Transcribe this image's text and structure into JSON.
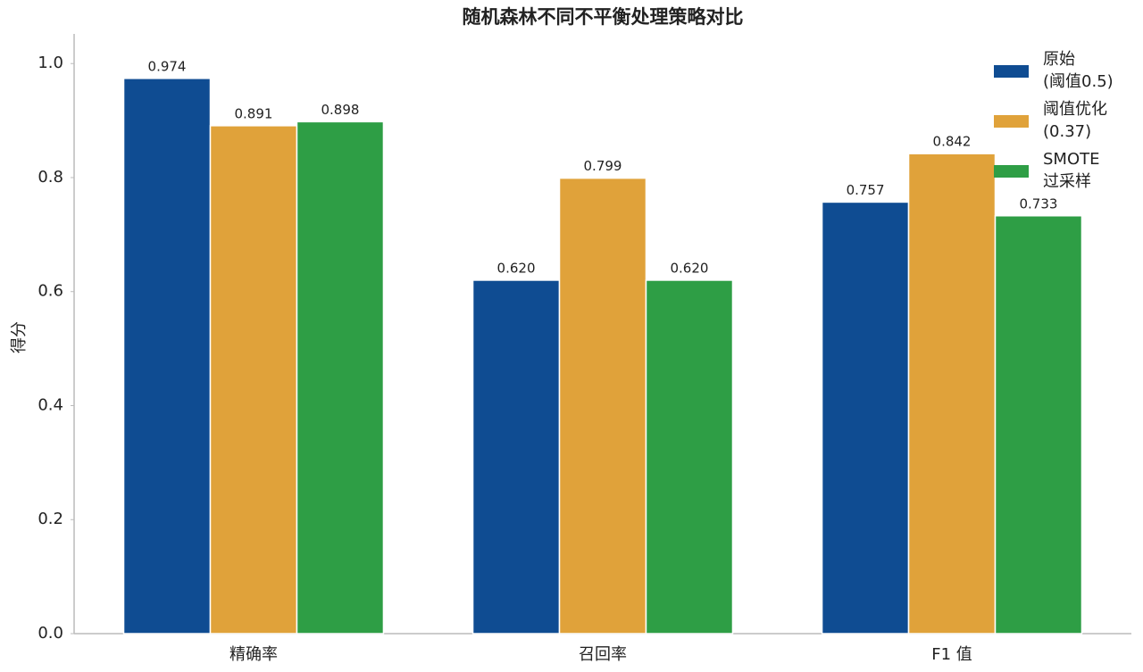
{
  "chart_data": {
    "type": "bar",
    "title": "随机森林不同不平衡处理策略对比",
    "y_label": "得分",
    "categories": [
      "精确率",
      "召回率",
      "F1 值"
    ],
    "series": [
      {
        "name": "原始\n(阈值0.5)",
        "color": "#0f4c92",
        "values": [
          0.974,
          0.62,
          0.757
        ],
        "value_labels": [
          "0.974",
          "0.620",
          "0.757"
        ]
      },
      {
        "name": "阈值优化\n(0.37)",
        "color": "#e0a23a",
        "values": [
          0.891,
          0.799,
          0.842
        ],
        "value_labels": [
          "0.891",
          "0.799",
          "0.842"
        ]
      },
      {
        "name": "SMOTE\n过采样",
        "color": "#2e9e45",
        "values": [
          0.898,
          0.62,
          0.733
        ],
        "value_labels": [
          "0.898",
          "0.620",
          "0.733"
        ]
      }
    ],
    "ylim": [
      0,
      1.052
    ],
    "yticks": [
      {
        "value": 0,
        "label": "0.0"
      },
      0.2,
      0.4,
      0.6,
      0.8,
      {
        "value": 1,
        "label": "1.0"
      }
    ],
    "grid": false,
    "legend": "upper right"
  }
}
